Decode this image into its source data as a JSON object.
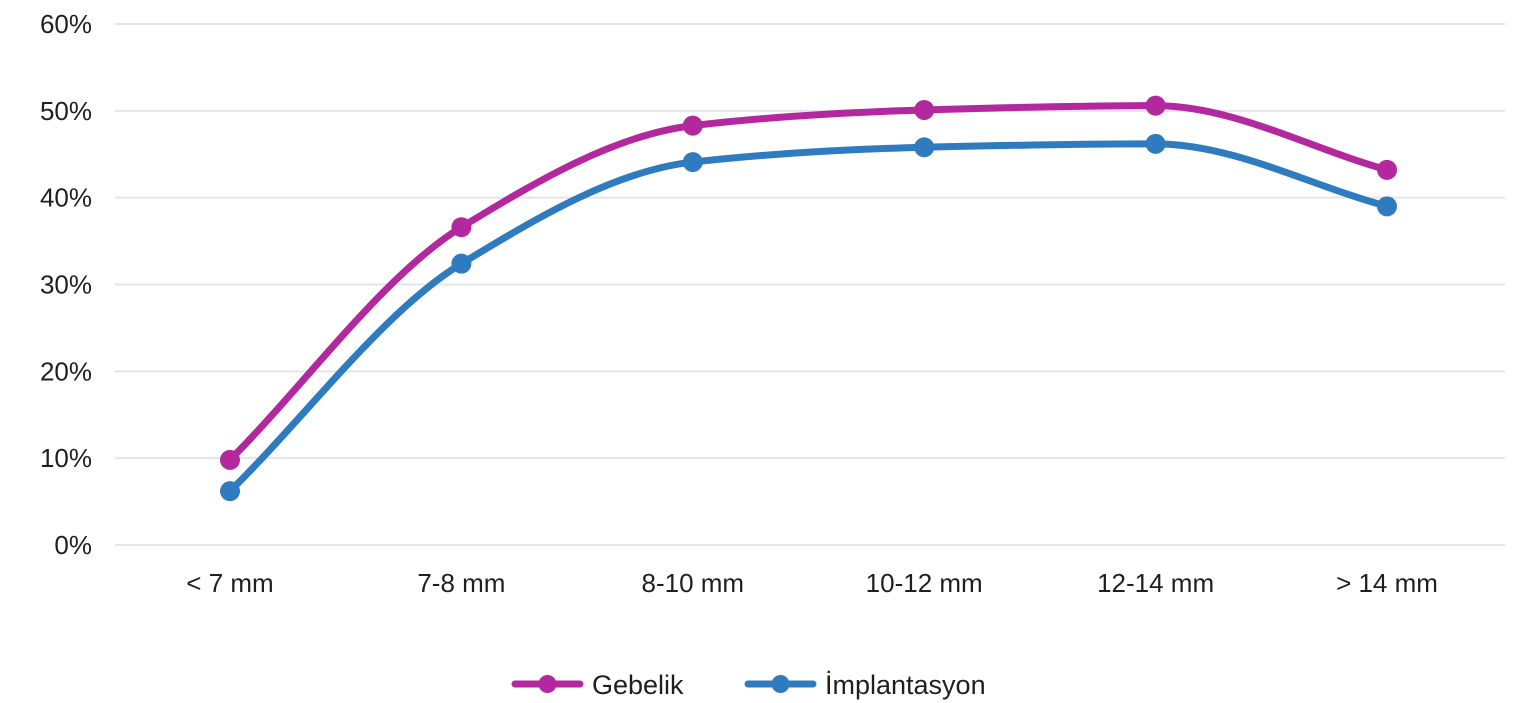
{
  "chart_data": {
    "type": "line",
    "title": "",
    "xlabel": "",
    "ylabel": "",
    "categories": [
      "< 7 mm",
      "7-8 mm",
      "8-10 mm",
      "10-12 mm",
      "12-14 mm",
      "> 14 mm"
    ],
    "series": [
      {
        "name": "Gebelik",
        "color": "#b3289f",
        "values": [
          9.8,
          36.6,
          48.3,
          50.1,
          50.6,
          43.2
        ]
      },
      {
        "name": "İmplantasyon",
        "color": "#2f7bc0",
        "values": [
          6.2,
          32.4,
          44.1,
          45.8,
          46.2,
          39.0
        ]
      }
    ],
    "ylim": [
      0,
      60
    ],
    "yticks": [
      0,
      10,
      20,
      30,
      40,
      50,
      60
    ],
    "ytick_labels": [
      "0%",
      "10%",
      "20%",
      "30%",
      "40%",
      "50%",
      "60%"
    ],
    "grid": true,
    "legend_position": "bottom-center",
    "smooth": true
  }
}
